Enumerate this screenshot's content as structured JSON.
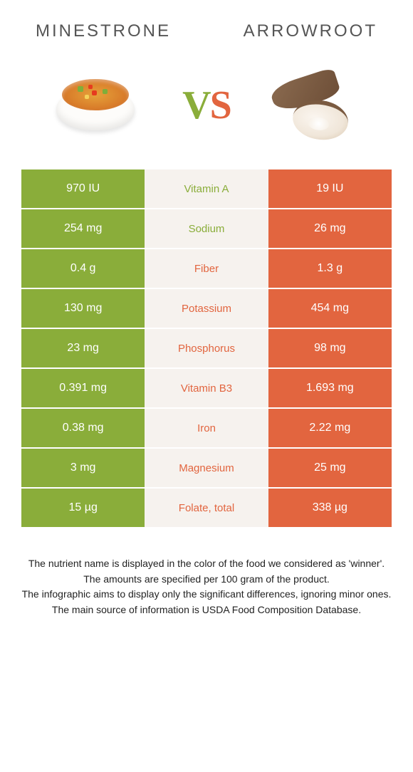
{
  "colors": {
    "green": "#8aad3a",
    "orange": "#e2653f",
    "mid_bg": "#f6f2ee",
    "text_white": "#ffffff"
  },
  "food_left": {
    "title": "MINESTRONE"
  },
  "food_right": {
    "title": "ARROWROOT"
  },
  "vs": {
    "v": "V",
    "s": "S"
  },
  "rows": [
    {
      "left": "970 IU",
      "mid": "Vitamin A",
      "right": "19 IU",
      "winner": "left"
    },
    {
      "left": "254 mg",
      "mid": "Sodium",
      "right": "26 mg",
      "winner": "left"
    },
    {
      "left": "0.4 g",
      "mid": "Fiber",
      "right": "1.3 g",
      "winner": "right"
    },
    {
      "left": "130 mg",
      "mid": "Potassium",
      "right": "454 mg",
      "winner": "right"
    },
    {
      "left": "23 mg",
      "mid": "Phosphorus",
      "right": "98 mg",
      "winner": "right"
    },
    {
      "left": "0.391 mg",
      "mid": "Vitamin B3",
      "right": "1.693 mg",
      "winner": "right"
    },
    {
      "left": "0.38 mg",
      "mid": "Iron",
      "right": "2.22 mg",
      "winner": "right"
    },
    {
      "left": "3 mg",
      "mid": "Magnesium",
      "right": "25 mg",
      "winner": "right"
    },
    {
      "left": "15 µg",
      "mid": "Folate, total",
      "right": "338 µg",
      "winner": "right"
    }
  ],
  "footer": {
    "l1": "The nutrient name is displayed in the color of the food we considered as 'winner'.",
    "l2": "The amounts are specified per 100 gram of the product.",
    "l3": "The infographic aims to display only the significant differences, ignoring minor ones.",
    "l4": "The main source of information is USDA Food Composition Database."
  }
}
